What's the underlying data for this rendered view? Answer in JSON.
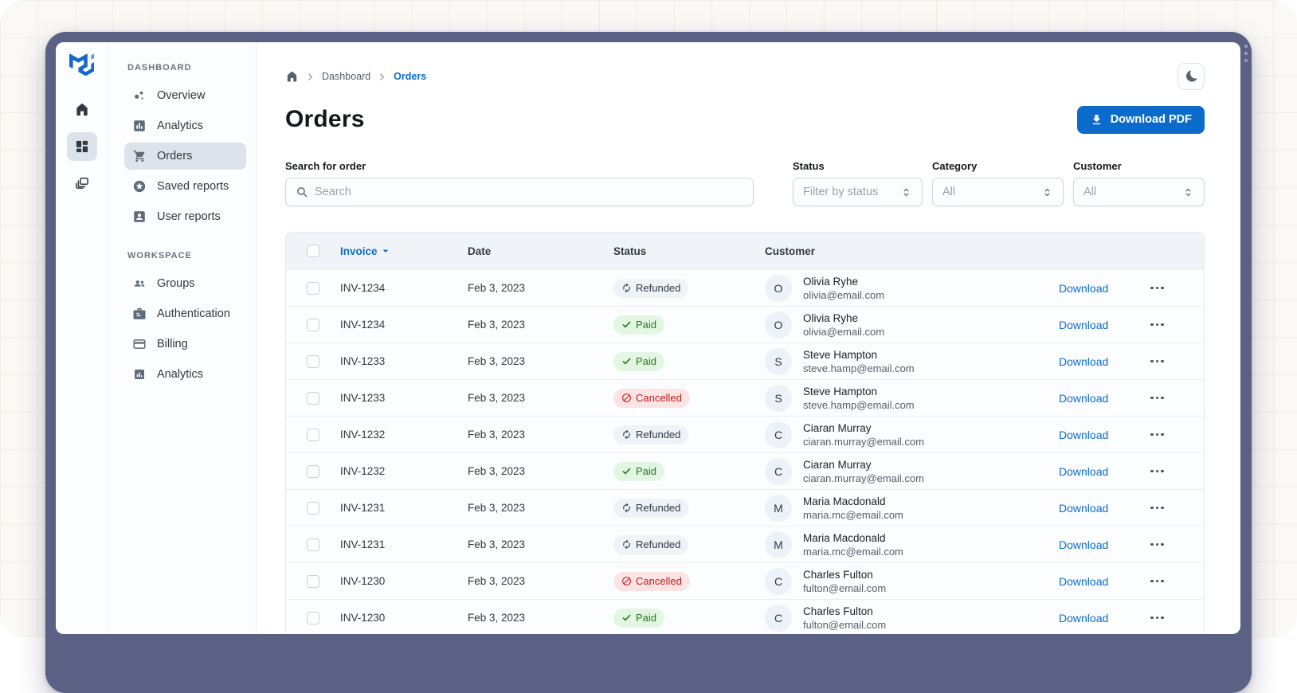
{
  "window": {
    "frame_color": "#5A6185"
  },
  "rail": {
    "items": [
      {
        "icon": "home-icon",
        "selected": false
      },
      {
        "icon": "dashboard-grid-icon",
        "selected": true
      },
      {
        "icon": "stacked-windows-icon",
        "selected": false
      }
    ]
  },
  "sidebar": {
    "sections": [
      {
        "label": "DASHBOARD",
        "items": [
          {
            "icon": "scatter-dots-icon",
            "label": "Overview",
            "selected": false
          },
          {
            "icon": "bar-chart-icon",
            "label": "Analytics",
            "selected": false
          },
          {
            "icon": "cart-icon",
            "label": "Orders",
            "selected": true
          },
          {
            "icon": "star-circle-icon",
            "label": "Saved reports",
            "selected": false
          },
          {
            "icon": "user-card-icon",
            "label": "User reports",
            "selected": false
          }
        ]
      },
      {
        "label": "WORKSPACE",
        "items": [
          {
            "icon": "groups-icon",
            "label": "Groups",
            "selected": false
          },
          {
            "icon": "badge-icon",
            "label": "Authentication",
            "selected": false
          },
          {
            "icon": "credit-card-icon",
            "label": "Billing",
            "selected": false
          },
          {
            "icon": "mini-chart-icon",
            "label": "Analytics",
            "selected": false
          }
        ]
      }
    ]
  },
  "breadcrumb": {
    "links": [
      "Dashboard"
    ],
    "current": "Orders"
  },
  "header": {
    "title": "Orders",
    "download_button": "Download PDF"
  },
  "filters": {
    "search": {
      "label": "Search for order",
      "placeholder": "Search"
    },
    "status": {
      "label": "Status",
      "value": "Filter by status"
    },
    "category": {
      "label": "Category",
      "value": "All"
    },
    "customer": {
      "label": "Customer",
      "value": "All"
    }
  },
  "table": {
    "columns": [
      "Invoice",
      "Date",
      "Status",
      "Customer"
    ],
    "sorted_by": "Invoice",
    "action_label": "Download",
    "rows": [
      {
        "invoice": "INV-1234",
        "date": "Feb 3, 2023",
        "status": "Refunded",
        "initial": "O",
        "name": "Olivia Ryhe",
        "email": "olivia@email.com"
      },
      {
        "invoice": "INV-1234",
        "date": "Feb 3, 2023",
        "status": "Paid",
        "initial": "O",
        "name": "Olivia Ryhe",
        "email": "olivia@email.com"
      },
      {
        "invoice": "INV-1233",
        "date": "Feb 3, 2023",
        "status": "Paid",
        "initial": "S",
        "name": "Steve Hampton",
        "email": "steve.hamp@email.com"
      },
      {
        "invoice": "INV-1233",
        "date": "Feb 3, 2023",
        "status": "Cancelled",
        "initial": "S",
        "name": "Steve Hampton",
        "email": "steve.hamp@email.com"
      },
      {
        "invoice": "INV-1232",
        "date": "Feb 3, 2023",
        "status": "Refunded",
        "initial": "C",
        "name": "Ciaran Murray",
        "email": "ciaran.murray@email.com"
      },
      {
        "invoice": "INV-1232",
        "date": "Feb 3, 2023",
        "status": "Paid",
        "initial": "C",
        "name": "Ciaran Murray",
        "email": "ciaran.murray@email.com"
      },
      {
        "invoice": "INV-1231",
        "date": "Feb 3, 2023",
        "status": "Refunded",
        "initial": "M",
        "name": "Maria Macdonald",
        "email": "maria.mc@email.com"
      },
      {
        "invoice": "INV-1231",
        "date": "Feb 3, 2023",
        "status": "Refunded",
        "initial": "M",
        "name": "Maria Macdonald",
        "email": "maria.mc@email.com"
      },
      {
        "invoice": "INV-1230",
        "date": "Feb 3, 2023",
        "status": "Cancelled",
        "initial": "C",
        "name": "Charles Fulton",
        "email": "fulton@email.com"
      },
      {
        "invoice": "INV-1230",
        "date": "Feb 3, 2023",
        "status": "Paid",
        "initial": "C",
        "name": "Charles Fulton",
        "email": "fulton@email.com"
      }
    ]
  },
  "colors": {
    "primary": "#0B6BCB",
    "success_bg": "#E3F6E1",
    "success_text": "#1F7A1F",
    "danger_bg": "#FCE4E4",
    "danger_text": "#C41C1C",
    "neutral_bg": "#EFF3F7",
    "neutral_text": "#32383E",
    "frame": "#5A6185"
  }
}
